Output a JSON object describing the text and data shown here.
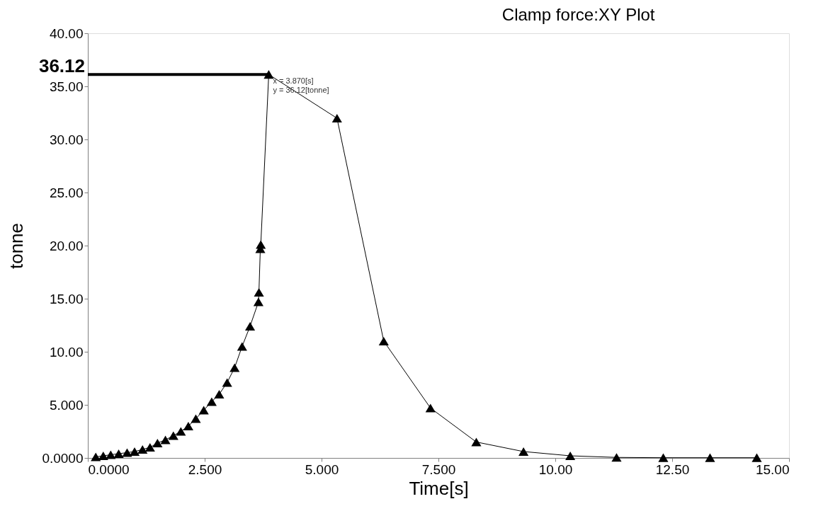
{
  "chart_data": {
    "type": "line",
    "title": "Clamp force:XY Plot",
    "xlabel": "Time[s]",
    "ylabel": "tonne",
    "xlim": [
      0,
      15
    ],
    "ylim": [
      0,
      40
    ],
    "xticks": [
      {
        "value": 0,
        "label": "0.0000"
      },
      {
        "value": 2.5,
        "label": "2.500"
      },
      {
        "value": 5,
        "label": "5.000"
      },
      {
        "value": 7.5,
        "label": "7.500"
      },
      {
        "value": 10,
        "label": "10.00"
      },
      {
        "value": 12.5,
        "label": "12.50"
      },
      {
        "value": 15,
        "label": "15.00"
      }
    ],
    "yticks": [
      {
        "value": 0,
        "label": "0.0000"
      },
      {
        "value": 5,
        "label": "5.000"
      },
      {
        "value": 10,
        "label": "10.00"
      },
      {
        "value": 15,
        "label": "15.00"
      },
      {
        "value": 20,
        "label": "20.00"
      },
      {
        "value": 25,
        "label": "25.00"
      },
      {
        "value": 30,
        "label": "30.00"
      },
      {
        "value": 35,
        "label": "35.00"
      },
      {
        "value": 40,
        "label": "40.00"
      }
    ],
    "grid": false,
    "series": [
      {
        "marker": "triangle",
        "color": "#000000",
        "x": [
          0.17,
          0.33,
          0.49,
          0.66,
          0.84,
          1.0,
          1.17,
          1.33,
          1.49,
          1.66,
          1.83,
          1.99,
          2.15,
          2.31,
          2.48,
          2.65,
          2.81,
          2.98,
          3.14,
          3.3,
          3.47,
          3.65,
          3.66,
          3.69,
          3.7,
          3.87,
          5.33,
          6.33,
          7.33,
          8.31,
          9.32,
          10.32,
          11.31,
          12.31,
          13.31,
          14.31
        ],
        "values": [
          0.1,
          0.2,
          0.3,
          0.4,
          0.5,
          0.6,
          0.8,
          1.0,
          1.4,
          1.7,
          2.1,
          2.5,
          3.0,
          3.7,
          4.5,
          5.3,
          6.0,
          7.1,
          8.5,
          10.5,
          12.4,
          14.7,
          15.6,
          19.7,
          20.1,
          36.12,
          32.0,
          11.0,
          4.7,
          1.5,
          0.6,
          0.2,
          0.05,
          0.02,
          0.02,
          0.02
        ]
      },
      {
        "marker": "none",
        "color": "#000000",
        "x": [
          0,
          3.87
        ],
        "values": [
          36.12,
          36.12
        ]
      }
    ],
    "annotations": [
      {
        "text": "36.12",
        "x": 0,
        "y": 36.12
      },
      {
        "text": "x = 3.870[s]\ny = 36.12[tonne]",
        "x": 3.87,
        "y": 36.12
      }
    ]
  }
}
